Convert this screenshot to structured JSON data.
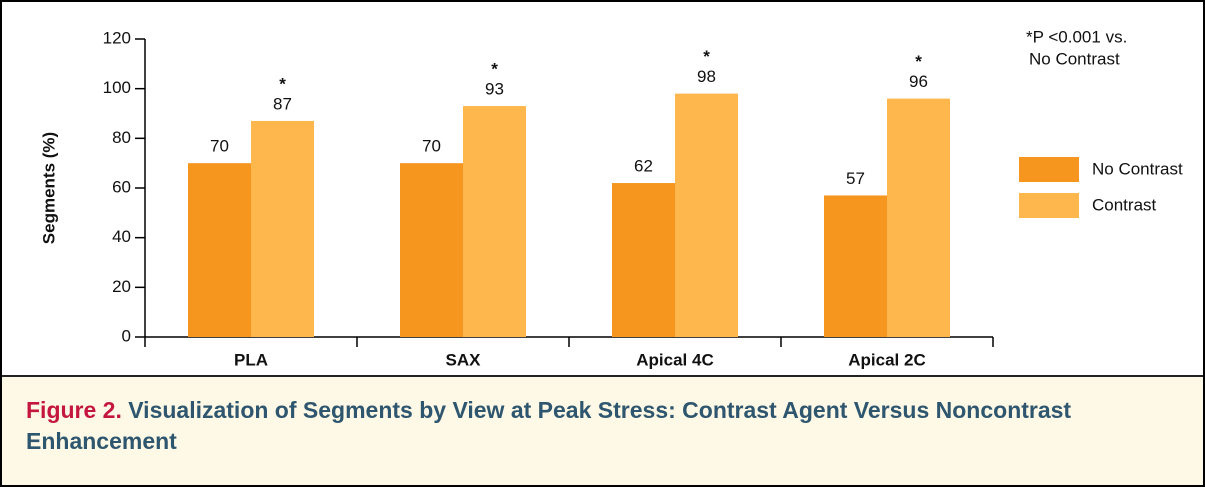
{
  "chart_data": {
    "type": "bar",
    "ylabel": "Segments (%)",
    "categories": [
      "PLA",
      "SAX",
      "Apical 4C",
      "Apical 2C"
    ],
    "series": [
      {
        "name": "No Contrast",
        "color": "#f7961f",
        "values": [
          70,
          70,
          62,
          57
        ]
      },
      {
        "name": "Contrast",
        "color": "#fdb74c",
        "values": [
          87,
          93,
          98,
          96
        ]
      }
    ],
    "significance_markers": [
      "*",
      "*",
      "*",
      "*"
    ],
    "annotation": [
      "*P <0.001 vs.",
      "No Contrast"
    ],
    "ylim": [
      0,
      120
    ],
    "yticks": [
      0,
      20,
      40,
      60,
      80,
      100,
      120
    ],
    "legend": "right"
  },
  "caption": {
    "label": "Figure 2.",
    "text": "Visualization of Segments by View at Peak Stress: Contrast Agent Versus Noncontrast Enhancement"
  }
}
